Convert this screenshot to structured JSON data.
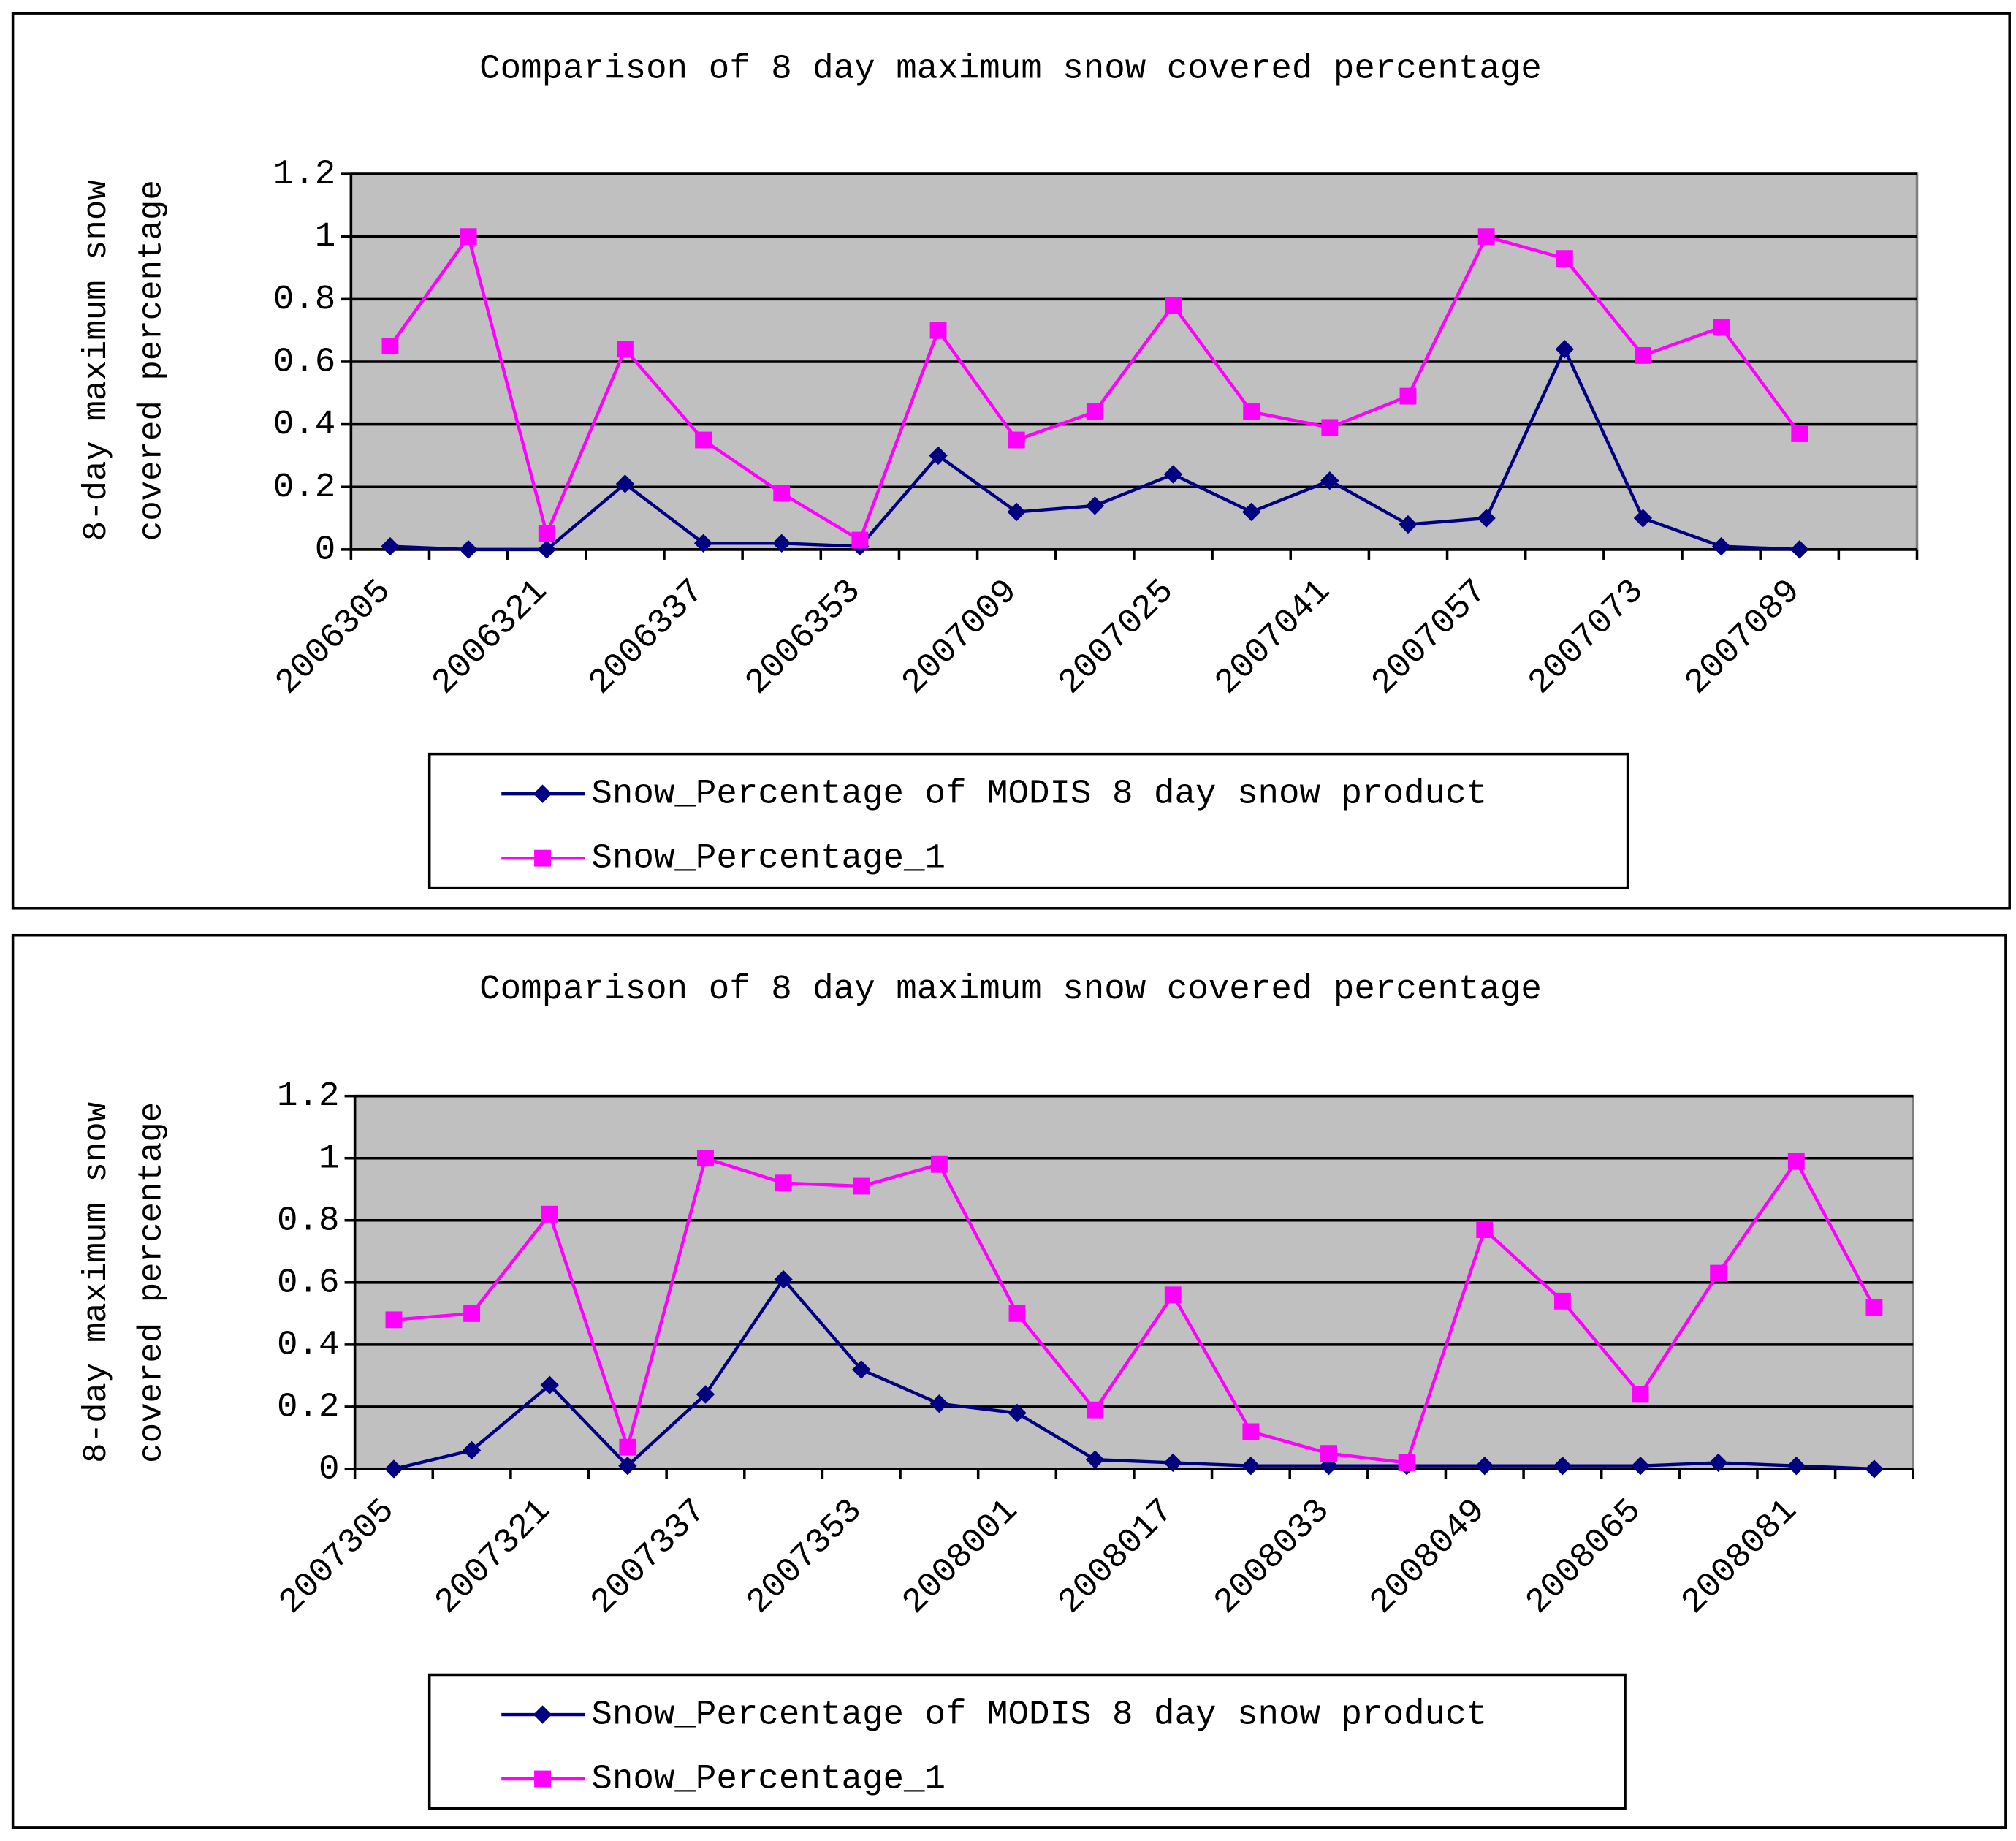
{
  "chart_data": [
    {
      "type": "line",
      "title": "Comparison of 8 day maximum snow covered percentage",
      "y_label_lines": [
        "8-day maximum snow",
        "covered percentage"
      ],
      "categories": [
        "2006305",
        null,
        "2006321",
        null,
        "2006337",
        null,
        "2006353",
        null,
        "2007009",
        null,
        "2007025",
        null,
        "2007041",
        null,
        "2007057",
        null,
        "2007073",
        null,
        "2007089",
        null
      ],
      "ylim": [
        0,
        1.2
      ],
      "yticks": [
        0,
        0.2,
        0.4,
        0.6,
        0.8,
        1,
        1.2
      ],
      "grid": true,
      "series": [
        {
          "name": "Snow_Percentage of MODIS 8 day snow product",
          "color": "#000080",
          "marker": "diamond",
          "values": [
            0.01,
            0,
            0,
            0.21,
            0.02,
            0.02,
            0.01,
            0.3,
            0.12,
            0.14,
            0.24,
            0.12,
            0.22,
            0.08,
            0.1,
            0.64,
            0.1,
            0.01,
            0,
            null
          ]
        },
        {
          "name": "Snow_Percentage_1",
          "color": "#ff00ff",
          "marker": "square",
          "values": [
            0.65,
            1.0,
            0.05,
            0.64,
            0.35,
            0.18,
            0.03,
            0.7,
            0.35,
            0.44,
            0.78,
            0.44,
            0.39,
            0.49,
            1.0,
            0.93,
            0.62,
            0.71,
            0.37,
            null
          ]
        }
      ]
    },
    {
      "type": "line",
      "title": "Comparison of 8 day maximum snow covered percentage",
      "y_label_lines": [
        "8-day maximum snow",
        "covered percentage"
      ],
      "categories": [
        "2007305",
        null,
        "2007321",
        null,
        "2007337",
        null,
        "2007353",
        null,
        "2008001",
        null,
        "2008017",
        null,
        "2008033",
        null,
        "2008049",
        null,
        "2008065",
        null,
        "2008081",
        null
      ],
      "ylim": [
        0,
        1.2
      ],
      "yticks": [
        0,
        0.2,
        0.4,
        0.6,
        0.8,
        1,
        1.2
      ],
      "grid": true,
      "series": [
        {
          "name": "Snow_Percentage of MODIS 8 day snow product",
          "color": "#000080",
          "marker": "diamond",
          "values": [
            0,
            0.06,
            0.27,
            0.01,
            0.24,
            0.61,
            0.32,
            0.21,
            0.18,
            0.03,
            0.02,
            0.01,
            0.01,
            0.01,
            0.01,
            0.01,
            0.01,
            0.02,
            0.01,
            0
          ]
        },
        {
          "name": "Snow_Percentage_1",
          "color": "#ff00ff",
          "marker": "square",
          "values": [
            0.48,
            0.5,
            0.82,
            0.07,
            1.0,
            0.92,
            0.91,
            0.98,
            0.5,
            0.19,
            0.56,
            0.12,
            0.05,
            0.02,
            0.77,
            0.54,
            0.24,
            0.63,
            0.99,
            0.52
          ]
        }
      ]
    }
  ]
}
